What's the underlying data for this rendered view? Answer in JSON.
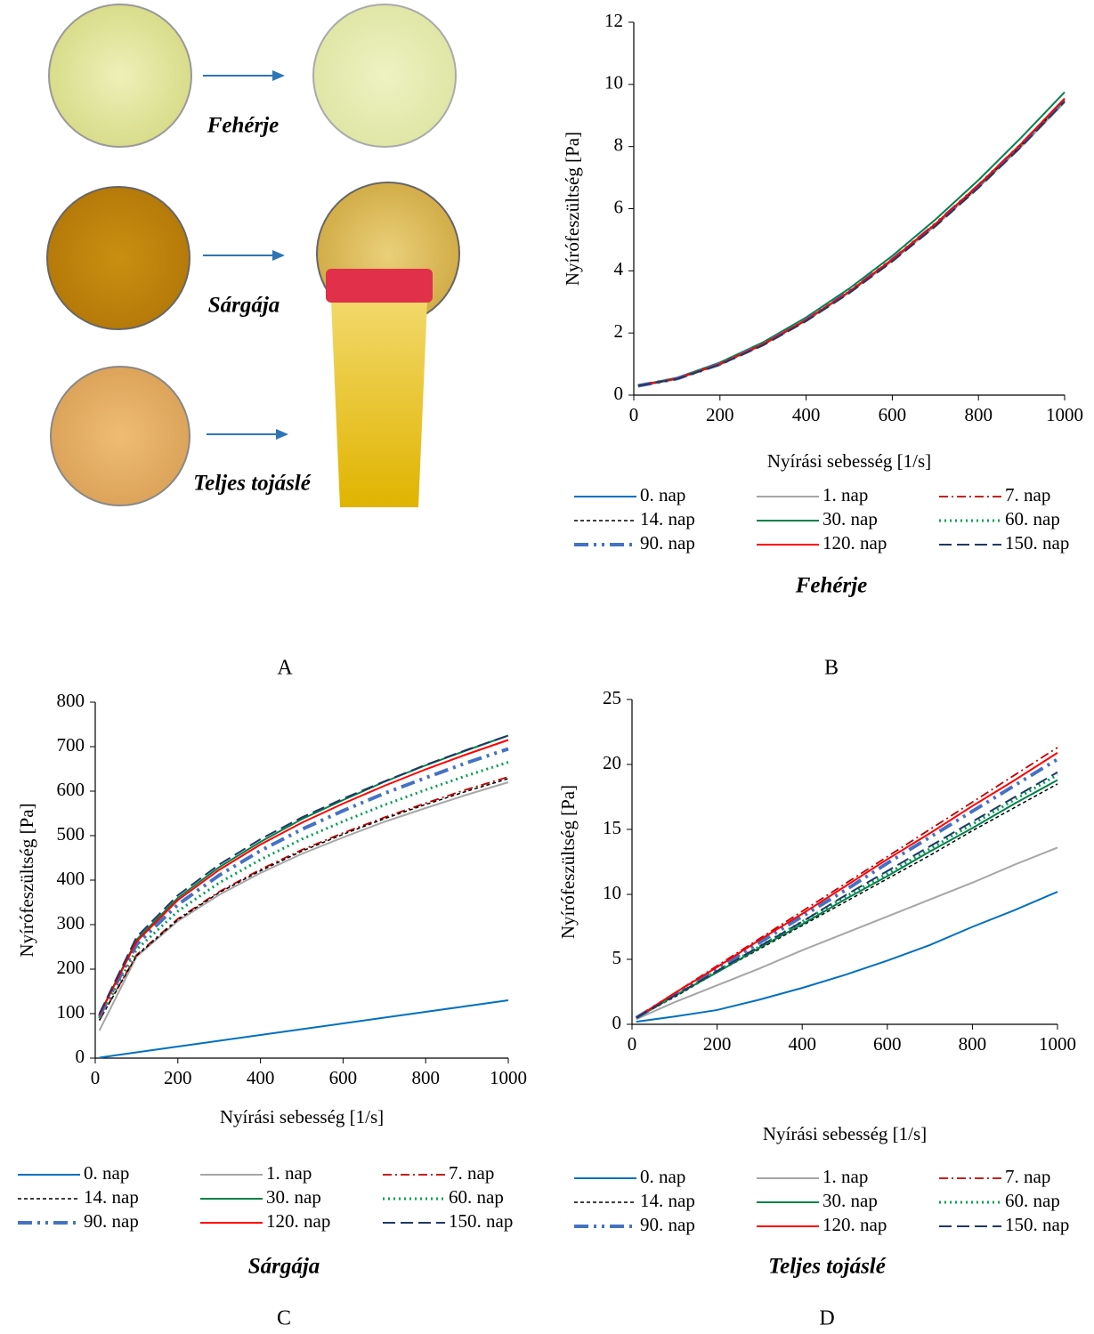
{
  "panel_a": {
    "labels": [
      "Fehérje",
      "Sárgája",
      "Teljes tojáslé"
    ],
    "letter": "A"
  },
  "chart_data": [
    {
      "type": "line",
      "title": "Fehérje",
      "letter": "B",
      "xlabel": "Nyírási sebesség [1/s]",
      "ylabel": "Nyírófeszültség [Pa]",
      "x": [
        10,
        100,
        200,
        300,
        400,
        500,
        600,
        700,
        800,
        900,
        1000
      ],
      "xlim": [
        0,
        1000
      ],
      "xticks": [
        0,
        200,
        400,
        600,
        800,
        1000
      ],
      "ylim": [
        0,
        12
      ],
      "yticks": [
        0,
        2,
        4,
        6,
        8,
        10,
        12
      ],
      "series": [
        {
          "name": "0. nap",
          "color": "#0070c0",
          "dash": "solid",
          "values": [
            0.3,
            0.53,
            1.0,
            1.64,
            2.42,
            3.33,
            4.36,
            5.5,
            6.74,
            8.07,
            9.5
          ]
        },
        {
          "name": "1. nap",
          "color": "#a6a6a6",
          "dash": "solid",
          "values": [
            0.3,
            0.52,
            0.99,
            1.62,
            2.4,
            3.3,
            4.32,
            5.45,
            6.68,
            8.0,
            9.42
          ]
        },
        {
          "name": "7. nap",
          "color": "#c00000",
          "dash": "dashdot",
          "values": [
            0.3,
            0.52,
            0.99,
            1.62,
            2.4,
            3.31,
            4.34,
            5.47,
            6.7,
            8.03,
            9.46
          ]
        },
        {
          "name": "14. nap",
          "color": "#000000",
          "dash": "dashed",
          "values": [
            0.3,
            0.53,
            1.0,
            1.63,
            2.41,
            3.32,
            4.35,
            5.49,
            6.72,
            8.05,
            9.48
          ]
        },
        {
          "name": "30. nap",
          "color": "#00804a",
          "dash": "solid",
          "values": [
            0.31,
            0.56,
            1.05,
            1.7,
            2.5,
            3.43,
            4.48,
            5.65,
            6.92,
            8.3,
            9.75
          ]
        },
        {
          "name": "60. nap",
          "color": "#00a050",
          "dash": "dotted",
          "values": [
            0.3,
            0.53,
            1.0,
            1.64,
            2.42,
            3.33,
            4.36,
            5.5,
            6.74,
            8.07,
            9.5
          ]
        },
        {
          "name": "90. nap",
          "color": "#4472c4",
          "dash": "dashdotdot",
          "values": [
            0.3,
            0.53,
            1.0,
            1.64,
            2.42,
            3.33,
            4.36,
            5.5,
            6.74,
            8.07,
            9.5
          ]
        },
        {
          "name": "120. nap",
          "color": "#ff0000",
          "dash": "solid",
          "values": [
            0.3,
            0.53,
            1.0,
            1.64,
            2.42,
            3.33,
            4.37,
            5.51,
            6.76,
            8.1,
            9.55
          ]
        },
        {
          "name": "150. nap",
          "color": "#1f3864",
          "dash": "longdash",
          "values": [
            0.3,
            0.52,
            0.98,
            1.6,
            2.38,
            3.28,
            4.3,
            5.43,
            6.67,
            8.0,
            9.45
          ]
        }
      ]
    },
    {
      "type": "line",
      "title": "Sárgája",
      "letter": "C",
      "xlabel": "Nyírási sebesség [1/s]",
      "ylabel": "Nyírófeszültség [Pa]",
      "x": [
        10,
        100,
        200,
        300,
        400,
        500,
        600,
        700,
        800,
        900,
        1000
      ],
      "xlim": [
        0,
        1000
      ],
      "xticks": [
        0,
        200,
        400,
        600,
        800,
        1000
      ],
      "ylim": [
        0,
        800
      ],
      "yticks": [
        0,
        100,
        200,
        300,
        400,
        500,
        600,
        700,
        800
      ],
      "series": [
        {
          "name": "0. nap",
          "color": "#0070c0",
          "dash": "solid",
          "values": [
            1,
            13,
            26,
            39,
            52,
            65,
            78,
            91,
            104,
            117,
            130
          ]
        },
        {
          "name": "1. nap",
          "color": "#a6a6a6",
          "dash": "solid",
          "values": [
            62,
            228,
            308,
            367,
            416,
            459,
            496,
            531,
            562,
            592,
            620
          ]
        },
        {
          "name": "7. nap",
          "color": "#c00000",
          "dash": "dashdot",
          "values": [
            85,
            232,
            313,
            374,
            424,
            468,
            506,
            541,
            573,
            604,
            632
          ]
        },
        {
          "name": "14. nap",
          "color": "#000000",
          "dash": "dashed",
          "values": [
            85,
            230,
            311,
            372,
            421,
            465,
            503,
            538,
            570,
            600,
            628
          ]
        },
        {
          "name": "30. nap",
          "color": "#00804a",
          "dash": "solid",
          "values": [
            98,
            266,
            360,
            429,
            486,
            537,
            580,
            621,
            658,
            692,
            725
          ]
        },
        {
          "name": "60. nap",
          "color": "#00a050",
          "dash": "dotted",
          "values": [
            90,
            244,
            330,
            394,
            446,
            492,
            532,
            569,
            603,
            635,
            665
          ]
        },
        {
          "name": "90. nap",
          "color": "#4472c4",
          "dash": "dashdotdot",
          "values": [
            94,
            255,
            345,
            411,
            466,
            514,
            556,
            595,
            630,
            664,
            695
          ]
        },
        {
          "name": "120. nap",
          "color": "#ff0000",
          "dash": "solid",
          "values": [
            97,
            262,
            355,
            423,
            480,
            529,
            572,
            612,
            649,
            683,
            715
          ]
        },
        {
          "name": "150. nap",
          "color": "#1f3864",
          "dash": "longdash",
          "values": [
            100,
            272,
            366,
            435,
            492,
            541,
            583,
            622,
            659,
            693,
            725
          ]
        }
      ]
    },
    {
      "type": "line",
      "title": "Teljes tojáslé",
      "letter": "D",
      "xlabel": "Nyírási sebesség [1/s]",
      "ylabel": "Nyírófeszültség [Pa]",
      "x": [
        10,
        100,
        200,
        300,
        400,
        500,
        600,
        700,
        800,
        900,
        1000
      ],
      "xlim": [
        0,
        1000
      ],
      "xticks": [
        0,
        200,
        400,
        600,
        800,
        1000
      ],
      "ylim": [
        0,
        25
      ],
      "yticks": [
        0,
        5,
        10,
        15,
        20,
        25
      ],
      "series": [
        {
          "name": "0. nap",
          "color": "#0070c0",
          "dash": "solid",
          "values": [
            0.2,
            0.6,
            1.1,
            1.9,
            2.8,
            3.8,
            4.9,
            6.1,
            7.5,
            8.8,
            10.2
          ]
        },
        {
          "name": "1. nap",
          "color": "#a6a6a6",
          "dash": "solid",
          "values": [
            0.4,
            1.7,
            3.0,
            4.3,
            5.7,
            7.0,
            8.3,
            9.6,
            10.9,
            12.3,
            13.6
          ]
        },
        {
          "name": "7. nap",
          "color": "#c00000",
          "dash": "dashdot",
          "values": [
            0.5,
            2.4,
            4.5,
            6.6,
            8.7,
            10.8,
            12.9,
            15.0,
            17.1,
            19.2,
            21.3
          ]
        },
        {
          "name": "14. nap",
          "color": "#000000",
          "dash": "dashed",
          "values": [
            0.5,
            2.1,
            4.0,
            5.8,
            7.6,
            9.4,
            11.2,
            13.0,
            14.9,
            16.7,
            18.5
          ]
        },
        {
          "name": "30. nap",
          "color": "#00804a",
          "dash": "solid",
          "values": [
            0.5,
            2.2,
            4.0,
            5.9,
            7.7,
            9.6,
            11.4,
            13.3,
            15.1,
            17.0,
            18.8
          ]
        },
        {
          "name": "60. nap",
          "color": "#00a050",
          "dash": "dotted",
          "values": [
            0.5,
            2.2,
            4.1,
            6.0,
            7.9,
            9.8,
            11.6,
            13.5,
            15.4,
            17.3,
            19.2
          ]
        },
        {
          "name": "90. nap",
          "color": "#4472c4",
          "dash": "dashdotdot",
          "values": [
            0.5,
            2.3,
            4.3,
            6.3,
            8.3,
            10.3,
            12.4,
            14.4,
            16.4,
            18.4,
            20.4
          ]
        },
        {
          "name": "120. nap",
          "color": "#ff0000",
          "dash": "solid",
          "values": [
            0.5,
            2.4,
            4.4,
            6.5,
            8.5,
            10.6,
            12.7,
            14.7,
            16.8,
            18.8,
            20.9
          ]
        },
        {
          "name": "150. nap",
          "color": "#1f3864",
          "dash": "longdash",
          "values": [
            0.5,
            2.2,
            4.1,
            6.0,
            7.9,
            9.9,
            11.8,
            13.7,
            15.6,
            17.5,
            19.4
          ]
        }
      ]
    }
  ]
}
